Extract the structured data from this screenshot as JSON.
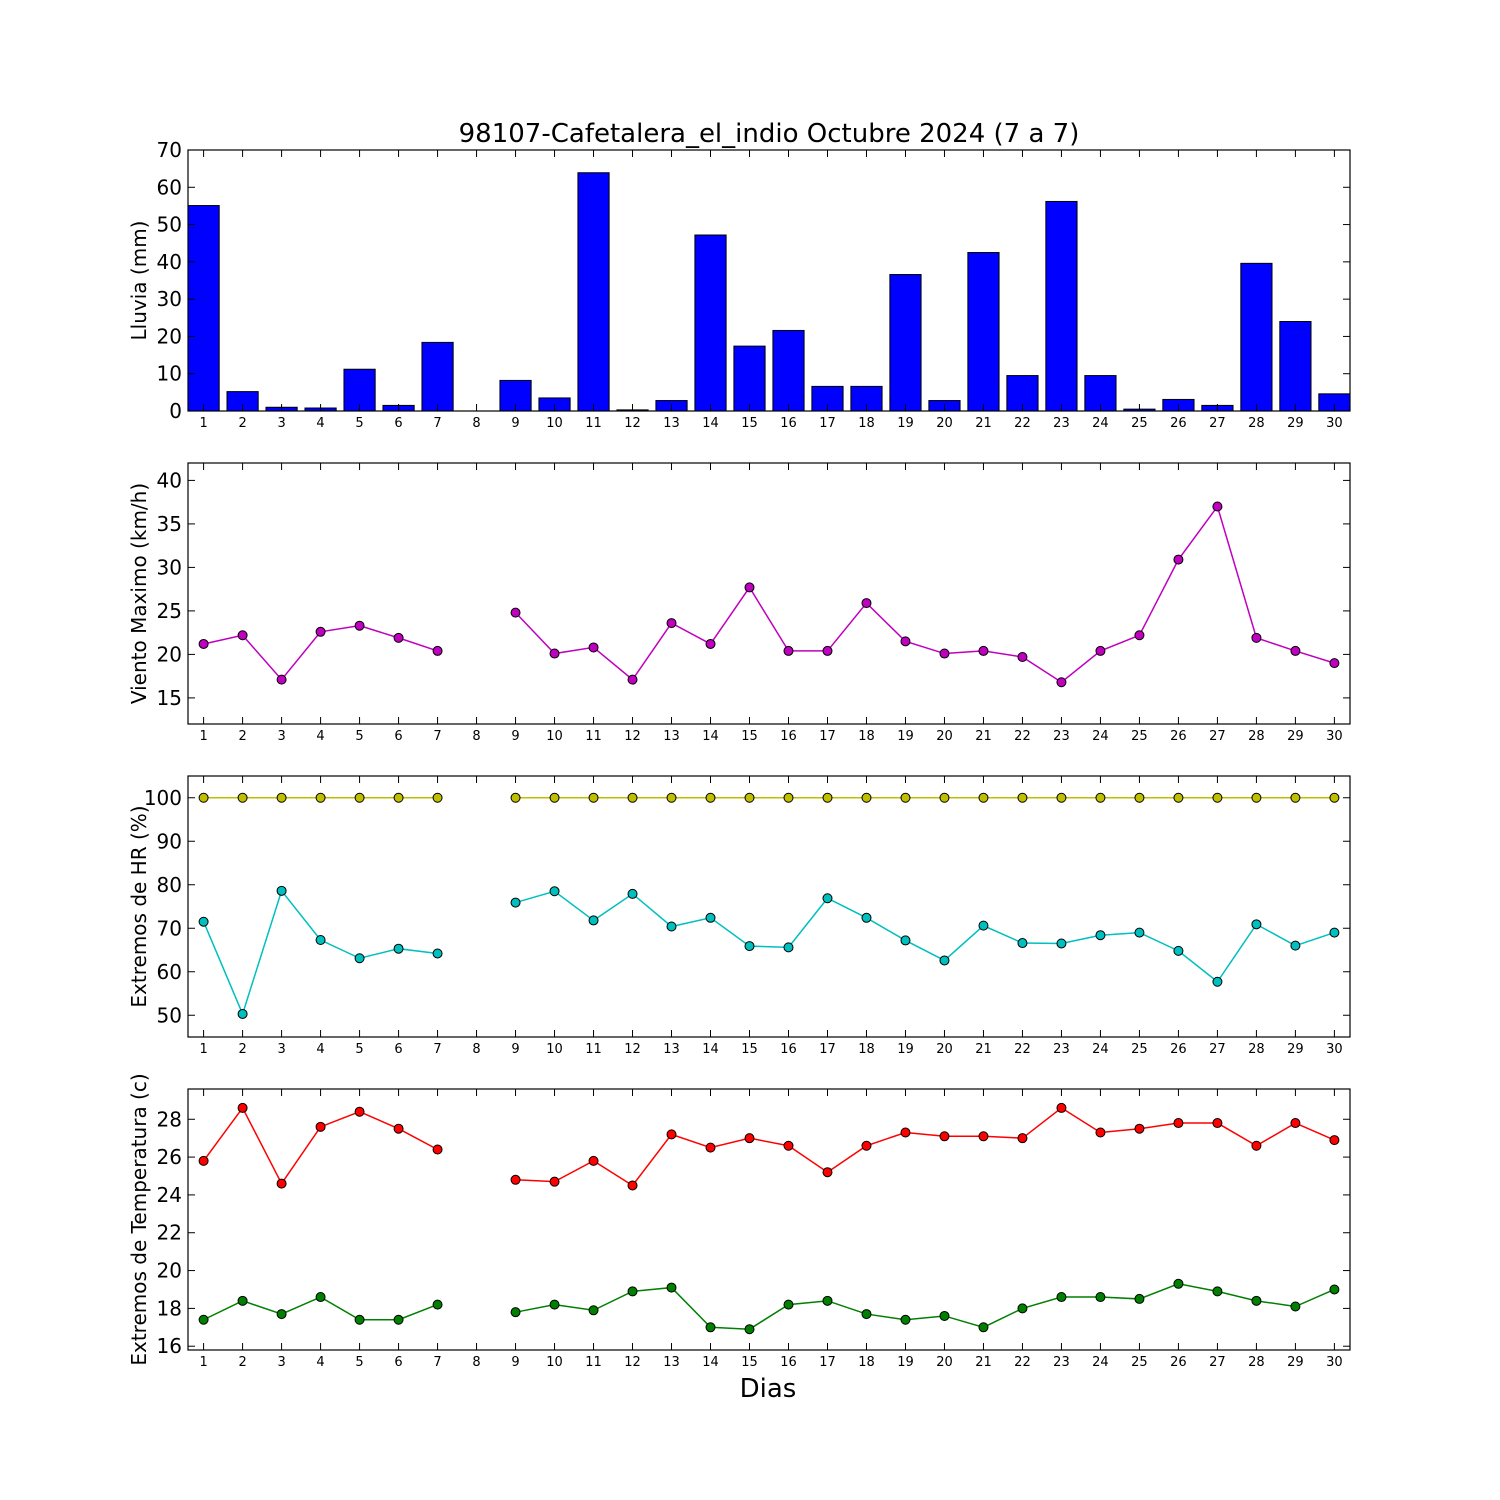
{
  "figure": {
    "title": "98107-Cafetalera_el_indio Octubre 2024  (7 a 7)",
    "xlabel": "Dias"
  },
  "chart_data": [
    {
      "type": "bar",
      "ylabel": "Lluvia (mm)",
      "ylim": [
        0,
        70
      ],
      "yticks": [
        0,
        10,
        20,
        30,
        40,
        50,
        60,
        70
      ],
      "categories": [
        "1",
        "2",
        "3",
        "4",
        "5",
        "6",
        "7",
        "8",
        "9",
        "10",
        "11",
        "12",
        "13",
        "14",
        "15",
        "16",
        "17",
        "18",
        "19",
        "20",
        "21",
        "22",
        "23",
        "24",
        "25",
        "26",
        "27",
        "28",
        "29",
        "30"
      ],
      "series": [
        {
          "color": "#0000ff",
          "values": [
            55.1,
            5.2,
            1.0,
            0.8,
            11.2,
            1.5,
            18.4,
            0,
            8.2,
            3.5,
            63.9,
            0.3,
            2.8,
            47.2,
            17.4,
            21.6,
            6.6,
            6.6,
            36.6,
            2.8,
            42.5,
            9.5,
            56.2,
            9.5,
            0.5,
            3.1,
            1.5,
            39.6,
            24.0,
            4.6
          ]
        }
      ]
    },
    {
      "type": "line",
      "ylabel": "Viento Maximo (km/h)",
      "ylim": [
        12,
        42
      ],
      "yticks": [
        15,
        20,
        25,
        30,
        35,
        40
      ],
      "categories": [
        "1",
        "2",
        "3",
        "4",
        "5",
        "6",
        "7",
        "8",
        "9",
        "10",
        "11",
        "12",
        "13",
        "14",
        "15",
        "16",
        "17",
        "18",
        "19",
        "20",
        "21",
        "22",
        "23",
        "24",
        "25",
        "26",
        "27",
        "28",
        "29",
        "30"
      ],
      "series": [
        {
          "color": "#bf00bf",
          "values": [
            21.2,
            22.2,
            17.1,
            22.6,
            23.3,
            21.9,
            20.4,
            null,
            24.8,
            20.1,
            20.8,
            17.1,
            23.6,
            21.2,
            27.7,
            20.4,
            20.4,
            25.9,
            21.5,
            20.1,
            20.4,
            19.7,
            16.8,
            20.4,
            22.2,
            30.9,
            37.0,
            21.9,
            20.4,
            19.0
          ]
        }
      ]
    },
    {
      "type": "line",
      "ylabel": "Extremos de HR (%)",
      "ylim": [
        45,
        105
      ],
      "yticks": [
        50,
        60,
        70,
        80,
        90,
        100
      ],
      "categories": [
        "1",
        "2",
        "3",
        "4",
        "5",
        "6",
        "7",
        "8",
        "9",
        "10",
        "11",
        "12",
        "13",
        "14",
        "15",
        "16",
        "17",
        "18",
        "19",
        "20",
        "21",
        "22",
        "23",
        "24",
        "25",
        "26",
        "27",
        "28",
        "29",
        "30"
      ],
      "series": [
        {
          "color": "#bfbf00",
          "values": [
            100,
            100,
            100,
            100,
            100,
            100,
            100,
            null,
            100,
            100,
            100,
            100,
            100,
            100,
            100,
            100,
            100,
            100,
            100,
            100,
            100,
            100,
            100,
            100,
            100,
            100,
            100,
            100,
            100,
            100
          ]
        },
        {
          "color": "#00bfbf",
          "values": [
            71.5,
            50.3,
            78.6,
            67.3,
            63.1,
            65.3,
            64.2,
            null,
            75.9,
            78.5,
            71.8,
            77.9,
            70.4,
            72.4,
            65.9,
            65.6,
            76.9,
            72.4,
            67.2,
            62.6,
            70.6,
            66.6,
            66.5,
            68.4,
            69.0,
            64.8,
            57.7,
            70.9,
            66.0,
            69.0
          ]
        }
      ]
    },
    {
      "type": "line",
      "ylabel": "Extremos de Temperatura (c)",
      "ylim": [
        15.8,
        29.6
      ],
      "yticks": [
        16,
        18,
        20,
        22,
        24,
        26,
        28
      ],
      "categories": [
        "1",
        "2",
        "3",
        "4",
        "5",
        "6",
        "7",
        "8",
        "9",
        "10",
        "11",
        "12",
        "13",
        "14",
        "15",
        "16",
        "17",
        "18",
        "19",
        "20",
        "21",
        "22",
        "23",
        "24",
        "25",
        "26",
        "27",
        "28",
        "29",
        "30"
      ],
      "series": [
        {
          "color": "#ff0000",
          "values": [
            25.8,
            28.6,
            24.6,
            27.6,
            28.4,
            27.5,
            26.4,
            null,
            24.8,
            24.7,
            25.8,
            24.5,
            27.2,
            26.5,
            27.0,
            26.6,
            25.2,
            26.6,
            27.3,
            27.1,
            27.1,
            27.0,
            28.6,
            27.3,
            27.5,
            27.8,
            27.8,
            26.6,
            27.8,
            26.9
          ]
        },
        {
          "color": "#008000",
          "values": [
            17.4,
            18.4,
            17.7,
            18.6,
            17.4,
            17.4,
            18.2,
            null,
            17.8,
            18.2,
            17.9,
            18.9,
            19.1,
            17.0,
            16.9,
            18.2,
            18.4,
            17.7,
            17.4,
            17.6,
            17.0,
            18.0,
            18.6,
            18.6,
            18.5,
            19.3,
            18.9,
            18.4,
            18.1,
            19.0
          ]
        }
      ]
    }
  ]
}
